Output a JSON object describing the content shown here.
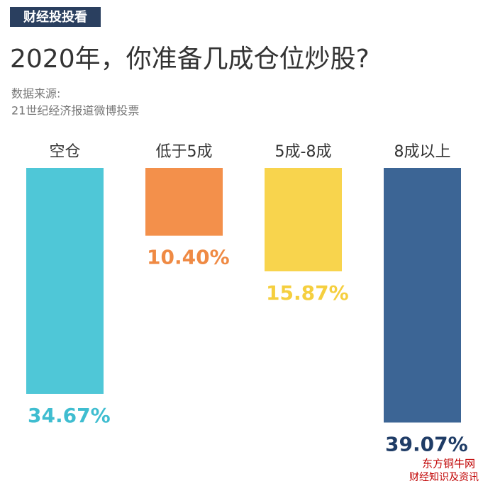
{
  "chart_data": {
    "type": "bar",
    "tag": "财经投投看",
    "title": "2020年，你准备几成仓位炒股?",
    "source": [
      "数据来源:",
      "21世纪经济报道微博投票"
    ],
    "categories": [
      "空仓",
      "低于5成",
      "5成-8成",
      "8成以上"
    ],
    "values": [
      34.67,
      10.4,
      15.87,
      39.07
    ],
    "value_labels": [
      "34.67%",
      "10.40%",
      "15.87%",
      "39.07%"
    ],
    "colors": [
      "#4fc7d7",
      "#f3904b",
      "#f8d44d",
      "#3c6595"
    ],
    "label_colors": [
      "#3fbdd0",
      "#ef8a44",
      "#f5cf3f",
      "#1f3c66"
    ],
    "watermark": [
      "东方铜牛网",
      "财经知识及资讯"
    ]
  }
}
